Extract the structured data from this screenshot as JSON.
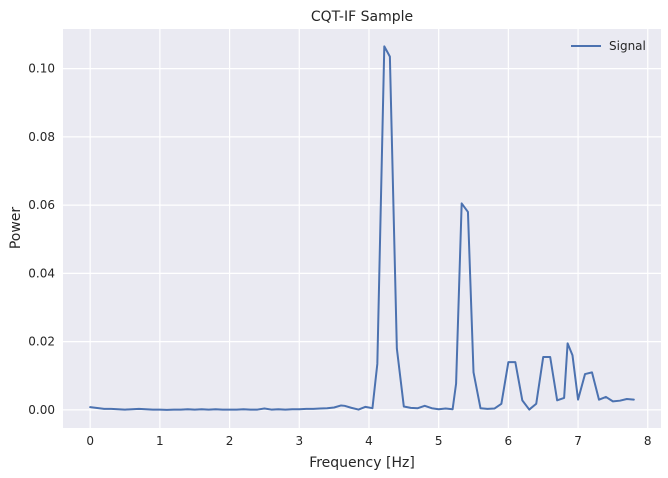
{
  "chart_data": {
    "type": "line",
    "title": "CQT-IF Sample",
    "xlabel": "Frequency [Hz]",
    "ylabel": "Power",
    "xlim": [
      -0.39,
      8.19
    ],
    "ylim": [
      -0.0053,
      0.1116
    ],
    "xticks": [
      0,
      1,
      2,
      3,
      4,
      5,
      6,
      7,
      8
    ],
    "xtick_labels": [
      "0",
      "1",
      "2",
      "3",
      "4",
      "5",
      "6",
      "7",
      "8"
    ],
    "yticks": [
      0.0,
      0.02,
      0.04,
      0.06,
      0.08,
      0.1
    ],
    "ytick_labels": [
      "0.00",
      "0.02",
      "0.04",
      "0.06",
      "0.08",
      "0.10"
    ],
    "grid": true,
    "legend_position": "top-right",
    "colors": {
      "background": "#eaeaf2",
      "grid": "#ffffff",
      "line": "#4c72b0",
      "text": "#262626"
    },
    "series": [
      {
        "name": "Signal",
        "x": [
          0.0,
          0.2,
          0.3,
          0.4,
          0.5,
          0.6,
          0.7,
          0.8,
          0.9,
          1.0,
          1.1,
          1.2,
          1.3,
          1.4,
          1.5,
          1.6,
          1.7,
          1.8,
          1.9,
          2.0,
          2.1,
          2.2,
          2.3,
          2.4,
          2.5,
          2.6,
          2.7,
          2.8,
          2.9,
          3.0,
          3.1,
          3.2,
          3.3,
          3.4,
          3.5,
          3.6,
          3.65,
          3.75,
          3.85,
          3.95,
          4.05,
          4.12,
          4.22,
          4.3,
          4.4,
          4.5,
          4.6,
          4.7,
          4.8,
          4.9,
          5.0,
          5.1,
          5.2,
          5.25,
          5.33,
          5.42,
          5.5,
          5.6,
          5.7,
          5.8,
          5.9,
          6.0,
          6.1,
          6.2,
          6.3,
          6.4,
          6.5,
          6.6,
          6.7,
          6.8,
          6.85,
          6.92,
          7.0,
          7.1,
          7.2,
          7.3,
          7.4,
          7.5,
          7.6,
          7.7,
          7.8
        ],
        "y": [
          0.0008,
          0.0003,
          0.0003,
          0.0002,
          0.0001,
          0.0002,
          0.0003,
          0.0002,
          0.0001,
          0.0001,
          0.0,
          0.0001,
          0.0001,
          0.0002,
          0.0001,
          0.0002,
          0.0001,
          0.0002,
          0.0001,
          0.0001,
          0.0001,
          0.0002,
          0.0001,
          0.0001,
          0.0004,
          0.0001,
          0.0002,
          0.0001,
          0.0002,
          0.0002,
          0.0003,
          0.0003,
          0.0004,
          0.0005,
          0.0007,
          0.0013,
          0.0012,
          0.0006,
          0.0001,
          0.0009,
          0.0005,
          0.0135,
          0.1065,
          0.1035,
          0.018,
          0.001,
          0.0006,
          0.0005,
          0.0012,
          0.0005,
          0.0002,
          0.0004,
          0.0002,
          0.0077,
          0.0605,
          0.058,
          0.011,
          0.0005,
          0.0003,
          0.0004,
          0.0018,
          0.014,
          0.014,
          0.0028,
          0.0001,
          0.0018,
          0.0155,
          0.0155,
          0.0028,
          0.0035,
          0.0195,
          0.016,
          0.003,
          0.0105,
          0.011,
          0.003,
          0.0038,
          0.0025,
          0.0027,
          0.0032,
          0.003
        ]
      }
    ]
  }
}
